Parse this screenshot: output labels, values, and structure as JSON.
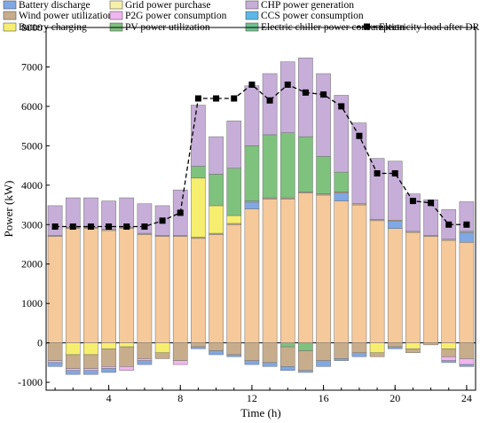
{
  "chart_data": {
    "type": "bar",
    "stacked": true,
    "xlabel": "Time (h)",
    "ylabel": "Power (kW)",
    "ylim": [
      -1200,
      8000
    ],
    "yticks": [
      -1000,
      0,
      1000,
      2000,
      3000,
      4000,
      5000,
      6000,
      7000,
      8000
    ],
    "xticks": [
      4,
      8,
      12,
      16,
      20,
      24
    ],
    "x": [
      1,
      2,
      3,
      4,
      5,
      6,
      7,
      8,
      9,
      10,
      11,
      12,
      13,
      14,
      15,
      16,
      17,
      18,
      19,
      20,
      21,
      22,
      23,
      24
    ],
    "legend_position": "top",
    "series": [
      {
        "name": "Battery discharge",
        "color": "#7fa8e4",
        "values": [
          0,
          0,
          0,
          0,
          0,
          0,
          0,
          0,
          0,
          0,
          0,
          170,
          0,
          0,
          0,
          0,
          200,
          0,
          0,
          180,
          0,
          0,
          0,
          250
        ]
      },
      {
        "name": "Wind power utilization",
        "color": "#c8ad8c",
        "values": [
          30,
          30,
          30,
          30,
          30,
          30,
          30,
          30,
          30,
          30,
          30,
          30,
          30,
          30,
          30,
          30,
          30,
          30,
          30,
          30,
          30,
          30,
          30,
          30
        ]
      },
      {
        "name": "Battery charging",
        "color": "#f6ee6e",
        "values": [
          0,
          0,
          0,
          0,
          0,
          0,
          0,
          0,
          1500,
          700,
          200,
          0,
          0,
          0,
          0,
          0,
          0,
          0,
          0,
          0,
          0,
          0,
          0,
          0
        ]
      },
      {
        "name": "Grid power purchase",
        "color": "#f6f1a8",
        "values": [
          0,
          0,
          0,
          0,
          0,
          0,
          0,
          0,
          0,
          0,
          0,
          0,
          0,
          0,
          0,
          0,
          0,
          0,
          0,
          0,
          0,
          0,
          0,
          0
        ]
      },
      {
        "name": "P2G power consumption",
        "color": "#f0b6ef",
        "values": [
          0,
          0,
          0,
          0,
          0,
          0,
          0,
          0,
          0,
          0,
          0,
          0,
          0,
          0,
          0,
          0,
          0,
          0,
          0,
          0,
          0,
          0,
          0,
          0
        ]
      },
      {
        "name": "PV power utilization",
        "color": "#7ec27e",
        "values": [
          0,
          0,
          0,
          0,
          0,
          0,
          0,
          0,
          300,
          800,
          1200,
          1400,
          1600,
          1650,
          1400,
          950,
          500,
          0,
          0,
          0,
          0,
          0,
          0,
          0
        ]
      },
      {
        "name": "CHP power generation",
        "color": "#c6aed8",
        "values": [
          750,
          750,
          750,
          720,
          750,
          750,
          750,
          1150,
          1550,
          950,
          1200,
          1520,
          1550,
          1800,
          2000,
          2100,
          1950,
          2050,
          1550,
          1500,
          950,
          900,
          750,
          750
        ]
      },
      {
        "name": "CCS power consumption",
        "color": "#5ab8e8",
        "values": [
          0,
          0,
          0,
          0,
          0,
          0,
          0,
          0,
          0,
          0,
          0,
          0,
          0,
          0,
          0,
          0,
          0,
          0,
          0,
          0,
          0,
          0,
          0,
          0
        ]
      },
      {
        "name": "Electric chiller power consumption",
        "color": "#6dc08e",
        "values": [
          0,
          0,
          0,
          0,
          0,
          0,
          0,
          0,
          0,
          0,
          0,
          0,
          0,
          0,
          0,
          0,
          0,
          0,
          0,
          0,
          0,
          0,
          0,
          0
        ]
      },
      {
        "name": "Electricity load after DR",
        "color": "#000000",
        "type": "line",
        "values": [
          2950,
          2950,
          2950,
          2950,
          2950,
          2950,
          3100,
          3300,
          6200,
          6200,
          6200,
          6550,
          6150,
          6550,
          6350,
          6300,
          6000,
          5250,
          4300,
          4300,
          3600,
          3550,
          3000,
          3000
        ]
      }
    ],
    "base_values": [
      2700,
      2900,
      2900,
      2850,
      2900,
      2750,
      2700,
      2700,
      2650,
      2750,
      3000,
      3400,
      3650,
      3650,
      3800,
      3750,
      3600,
      3500,
      3100,
      2900,
      2800,
      2700,
      2600,
      2550
    ],
    "negative_stack": [
      {
        "name": "Battery charging",
        "color": "#f6ee6e",
        "values": [
          0,
          -300,
          -300,
          -150,
          -100,
          0,
          -250,
          0,
          0,
          0,
          0,
          0,
          0,
          0,
          0,
          0,
          0,
          0,
          -250,
          0,
          -150,
          0,
          -150,
          0
        ]
      },
      {
        "name": "PV power utilization",
        "color": "#7ec27e",
        "values": [
          0,
          0,
          0,
          0,
          0,
          0,
          0,
          0,
          0,
          0,
          0,
          0,
          0,
          -100,
          -200,
          0,
          0,
          0,
          0,
          0,
          0,
          0,
          0,
          0
        ]
      },
      {
        "name": "Wind power utilization",
        "color": "#c8ad8c",
        "values": [
          -450,
          -350,
          -350,
          -450,
          -500,
          -400,
          -150,
          -450,
          -100,
          -200,
          -300,
          -450,
          -500,
          -500,
          -500,
          -450,
          -400,
          -250,
          -100,
          -100,
          -100,
          -50,
          -200,
          -400
        ]
      },
      {
        "name": "P2G power consumption",
        "color": "#f0b6ef",
        "values": [
          -50,
          -50,
          -50,
          -50,
          -100,
          -50,
          0,
          -100,
          0,
          0,
          0,
          0,
          0,
          0,
          0,
          0,
          0,
          0,
          0,
          0,
          0,
          0,
          -100,
          -150
        ]
      },
      {
        "name": "Battery discharge",
        "color": "#7fa8e4",
        "values": [
          -100,
          -100,
          -100,
          -100,
          0,
          -100,
          0,
          0,
          -50,
          -100,
          -50,
          -100,
          -100,
          -100,
          -50,
          -150,
          -50,
          -100,
          0,
          -50,
          0,
          0,
          -50,
          -50
        ]
      }
    ]
  }
}
